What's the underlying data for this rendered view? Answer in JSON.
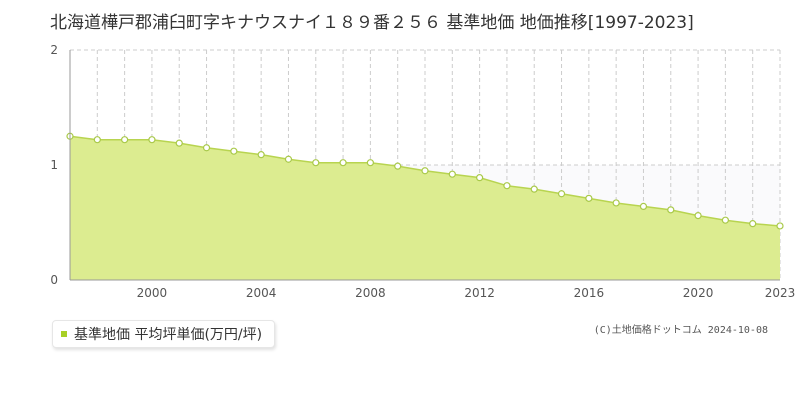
{
  "chart_data": {
    "type": "area",
    "title": "北海道樺戸郡浦臼町字キナウスナイ１８９番２５６ 基準地価 地価推移[1997-2023]",
    "x": [
      1997,
      1998,
      1999,
      2000,
      2001,
      2002,
      2003,
      2004,
      2005,
      2006,
      2007,
      2008,
      2009,
      2010,
      2011,
      2012,
      2013,
      2014,
      2015,
      2016,
      2017,
      2018,
      2019,
      2020,
      2021,
      2022,
      2023
    ],
    "series": [
      {
        "name": "基準地価 平均坪単価(万円/坪)",
        "values": [
          1.25,
          1.22,
          1.22,
          1.22,
          1.19,
          1.15,
          1.12,
          1.09,
          1.05,
          1.02,
          1.02,
          1.02,
          0.99,
          0.95,
          0.92,
          0.89,
          0.82,
          0.79,
          0.75,
          0.71,
          0.67,
          0.64,
          0.61,
          0.56,
          0.52,
          0.49,
          0.47
        ]
      }
    ],
    "xticks": [
      "2000",
      "2004",
      "2008",
      "2012",
      "2016",
      "2020",
      "2023"
    ],
    "xtick_values": [
      2000,
      2004,
      2008,
      2012,
      2016,
      2020,
      2023
    ],
    "yticks": [
      "0",
      "1",
      "2"
    ],
    "ytick_values": [
      0,
      1,
      2
    ],
    "xlim": [
      1997,
      2023
    ],
    "ylim": [
      0,
      2
    ],
    "grid": true,
    "legend_position": "bottom-left"
  },
  "colors": {
    "area_fill": "#dcec90",
    "line": "#b8d450",
    "marker_stroke": "#a9c94a",
    "legend_swatch": "#a8d026",
    "grid": "#cccccc",
    "plot_bg_upper": "#fafafc"
  },
  "credit": "(C)土地価格ドットコム 2024-10-08"
}
